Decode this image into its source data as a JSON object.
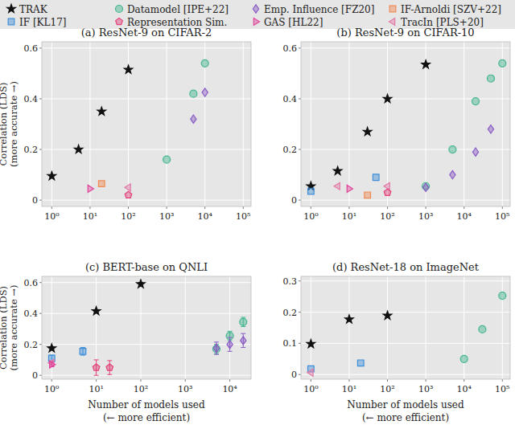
{
  "series_styles": [
    {
      "name": "TRAK",
      "color": "#111111",
      "marker": "star"
    },
    {
      "name": "IF [KL17]",
      "color": "#3f8fd8",
      "marker": "square"
    },
    {
      "name": "Datamodel [IPE+22]",
      "color": "#43b58f",
      "marker": "circle"
    },
    {
      "name": "Representation Sim.",
      "color": "#e2407a",
      "marker": "pentagon"
    },
    {
      "name": "Emp. Influence [FZ20]",
      "color": "#8a5cc4",
      "marker": "diamond"
    },
    {
      "name": "GAS [HL22]",
      "color": "#e0449a",
      "marker": "triangle-right"
    },
    {
      "name": "IF-Arnoldi [SZV+22]",
      "color": "#f08a55",
      "marker": "square"
    },
    {
      "name": "TracIn [PLS+20]",
      "color": "#e27aa8",
      "marker": "triangle-left"
    }
  ],
  "chart_data": [
    {
      "type": "scatter",
      "title": "(a) ResNet-9 on CIFAR-2",
      "log": "x",
      "grid": true,
      "ylabel": [
        "Correlation (LDS)",
        "(more accurate →)"
      ],
      "xlim": [
        0.55,
        160000
      ],
      "ylim": [
        -0.025,
        0.625
      ],
      "xticks": [
        {
          "value": 1,
          "label": "10⁰"
        },
        {
          "value": 10,
          "label": "10¹"
        },
        {
          "value": 100,
          "label": "10²"
        },
        {
          "value": 1000,
          "label": "10³"
        },
        {
          "value": 10000,
          "label": "10⁴"
        },
        {
          "value": 100000,
          "label": "10⁵"
        }
      ],
      "yticks": [
        0,
        0.2,
        0.4,
        0.6
      ],
      "series": [
        {
          "name": "TRAK",
          "x": [
            1,
            5,
            20,
            100
          ],
          "values": [
            0.095,
            0.2,
            0.35,
            0.515
          ]
        },
        {
          "name": "Datamodel [IPE+22]",
          "x": [
            1000,
            5000,
            10000
          ],
          "values": [
            0.16,
            0.42,
            0.54
          ]
        },
        {
          "name": "Emp. Influence [FZ20]",
          "x": [
            5000,
            10000
          ],
          "values": [
            0.32,
            0.425
          ]
        },
        {
          "name": "IF-Arnoldi [SZV+22]",
          "x": [
            20
          ],
          "values": [
            0.065
          ]
        },
        {
          "name": "GAS [HL22]",
          "x": [
            10
          ],
          "values": [
            0.045
          ]
        },
        {
          "name": "TracIn [PLS+20]",
          "x": [
            100
          ],
          "values": [
            0.05
          ]
        },
        {
          "name": "Representation Sim.",
          "x": [
            100
          ],
          "values": [
            0.02
          ]
        }
      ]
    },
    {
      "type": "scatter",
      "title": "(b) ResNet-9 on CIFAR-10",
      "log": "x",
      "grid": true,
      "xlim": [
        0.55,
        160000
      ],
      "ylim": [
        -0.025,
        0.625
      ],
      "xticks": [
        {
          "value": 1,
          "label": "10⁰"
        },
        {
          "value": 10,
          "label": "10¹"
        },
        {
          "value": 100,
          "label": "10²"
        },
        {
          "value": 1000,
          "label": "10³"
        },
        {
          "value": 10000,
          "label": "10⁴"
        },
        {
          "value": 100000,
          "label": "10⁵"
        }
      ],
      "yticks": [
        0,
        0.2,
        0.4,
        0.6
      ],
      "series": [
        {
          "name": "TRAK",
          "x": [
            1,
            5,
            30,
            100,
            1000
          ],
          "values": [
            0.055,
            0.115,
            0.27,
            0.4,
            0.535
          ]
        },
        {
          "name": "IF [KL17]",
          "x": [
            1,
            50
          ],
          "values": [
            0.035,
            0.09
          ]
        },
        {
          "name": "Datamodel [IPE+22]",
          "x": [
            1000,
            5000,
            20000,
            50000,
            100000
          ],
          "values": [
            0.055,
            0.2,
            0.39,
            0.48,
            0.54
          ]
        },
        {
          "name": "Emp. Influence [FZ20]",
          "x": [
            1000,
            5000,
            20000,
            50000
          ],
          "values": [
            0.05,
            0.1,
            0.19,
            0.28
          ]
        },
        {
          "name": "IF-Arnoldi [SZV+22]",
          "x": [
            30
          ],
          "values": [
            0.02
          ]
        },
        {
          "name": "GAS [HL22]",
          "x": [
            10
          ],
          "values": [
            0.045
          ]
        },
        {
          "name": "TracIn [PLS+20]",
          "x": [
            5,
            100
          ],
          "values": [
            0.055,
            0.055
          ]
        },
        {
          "name": "Representation Sim.",
          "x": [
            100
          ],
          "values": [
            0.03
          ]
        }
      ]
    },
    {
      "type": "scatter",
      "title": "(c) BERT-base on QNLI",
      "log": "x",
      "grid": true,
      "ylabel": [
        "Correlation (LDS)",
        "(more accurate →)"
      ],
      "xlabel": [
        "Number of models used",
        "(← more efficient)"
      ],
      "xlim": [
        0.6,
        30000
      ],
      "ylim": [
        -0.025,
        0.64
      ],
      "xticks": [
        {
          "value": 1,
          "label": "10⁰"
        },
        {
          "value": 10,
          "label": "10¹"
        },
        {
          "value": 100,
          "label": "10²"
        },
        {
          "value": 1000,
          "label": "10³"
        },
        {
          "value": 10000,
          "label": "10⁴"
        }
      ],
      "yticks": [
        0,
        0.2,
        0.4,
        0.6
      ],
      "series": [
        {
          "name": "TRAK",
          "x": [
            1,
            10,
            100
          ],
          "values": [
            0.175,
            0.415,
            0.59
          ],
          "errors": [
            0.01,
            0.01,
            0.01
          ]
        },
        {
          "name": "IF [KL17]",
          "x": [
            1,
            5
          ],
          "values": [
            0.11,
            0.155
          ],
          "errors": [
            0.02,
            0.025
          ]
        },
        {
          "name": "TracIn [PLS+20]",
          "x": [
            1
          ],
          "values": [
            0.08
          ],
          "errors": [
            0.015
          ]
        },
        {
          "name": "GAS [HL22]",
          "x": [
            1
          ],
          "values": [
            0.07
          ],
          "errors": [
            0.015
          ]
        },
        {
          "name": "Representation Sim.",
          "x": [
            10,
            20
          ],
          "values": [
            0.05,
            0.05
          ],
          "errors": [
            0.05,
            0.045
          ]
        },
        {
          "name": "Datamodel [IPE+22]",
          "x": [
            5000,
            10000,
            20000
          ],
          "values": [
            0.17,
            0.255,
            0.345
          ],
          "errors": [
            0.03,
            0.03,
            0.03
          ]
        },
        {
          "name": "Emp. Influence [FZ20]",
          "x": [
            5000,
            10000,
            20000
          ],
          "values": [
            0.175,
            0.2,
            0.225
          ],
          "errors": [
            0.04,
            0.045,
            0.045
          ]
        }
      ]
    },
    {
      "type": "scatter",
      "title": "(d) ResNet-18 on ImageNet",
      "log": "x",
      "grid": true,
      "xlabel": [
        "Number of models used",
        "(← more efficient)"
      ],
      "xlim": [
        0.55,
        160000
      ],
      "ylim": [
        -0.015,
        0.315
      ],
      "xticks": [
        {
          "value": 1,
          "label": "10⁰"
        },
        {
          "value": 10,
          "label": "10¹"
        },
        {
          "value": 100,
          "label": "10²"
        },
        {
          "value": 1000,
          "label": "10³"
        },
        {
          "value": 10000,
          "label": "10⁴"
        },
        {
          "value": 100000,
          "label": "10⁵"
        }
      ],
      "yticks": [
        0,
        0.1,
        0.2,
        0.3
      ],
      "series": [
        {
          "name": "TRAK",
          "x": [
            1,
            10,
            100
          ],
          "values": [
            0.098,
            0.177,
            0.189
          ]
        },
        {
          "name": "IF [KL17]",
          "x": [
            1,
            20
          ],
          "values": [
            0.018,
            0.037
          ]
        },
        {
          "name": "Datamodel [IPE+22]",
          "x": [
            10000,
            30000,
            100000
          ],
          "values": [
            0.05,
            0.145,
            0.253
          ]
        },
        {
          "name": "TracIn [PLS+20]",
          "x": [
            1
          ],
          "values": [
            0.006
          ]
        }
      ]
    }
  ]
}
